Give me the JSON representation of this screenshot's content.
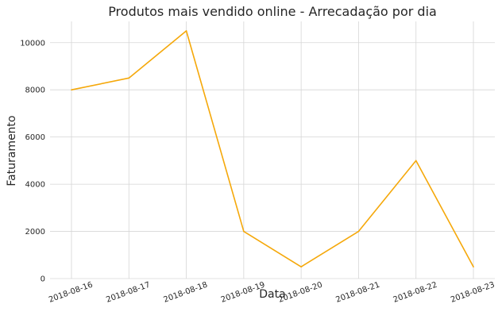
{
  "chart_data": {
    "type": "line",
    "title": "Produtos mais vendido online - Arrecadação por dia",
    "xlabel": "Data",
    "ylabel": "Faturamento",
    "x": [
      "2018-08-16",
      "2018-08-17",
      "2018-08-18",
      "2018-08-19",
      "2018-08-20",
      "2018-08-21",
      "2018-08-22",
      "2018-08-23"
    ],
    "series": [
      {
        "values": [
          8000,
          8500,
          10500,
          2000,
          500,
          2000,
          5000,
          500
        ],
        "color": "#f5a80a"
      }
    ],
    "yticks": [
      0,
      2000,
      4000,
      6000,
      8000,
      10000
    ],
    "ylim": [
      0,
      10900
    ],
    "grid": true,
    "legend": "none"
  }
}
